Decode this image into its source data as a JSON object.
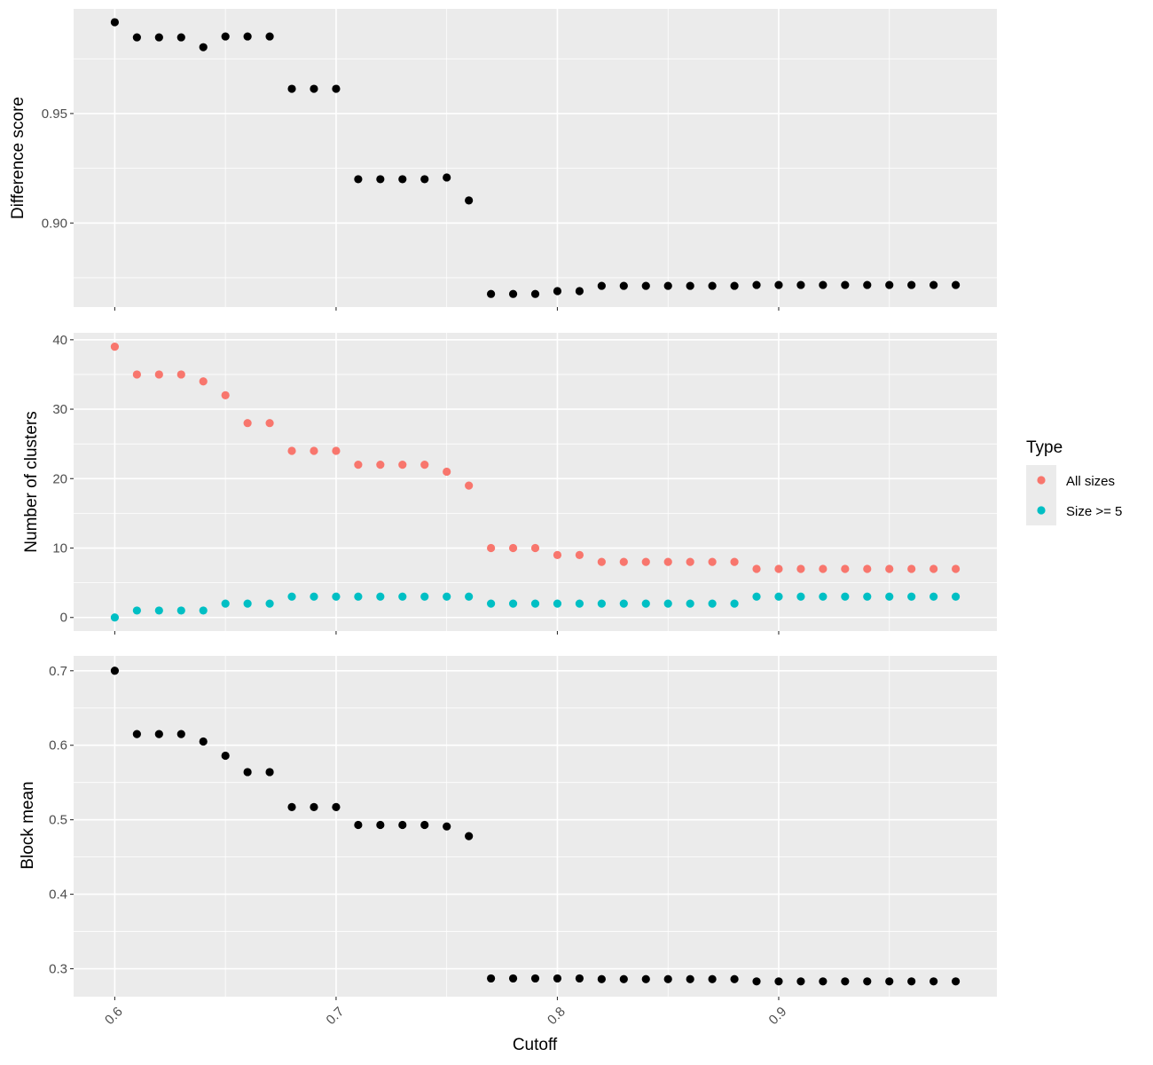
{
  "chart_data": [
    {
      "type": "scatter",
      "ylabel": "Difference score",
      "xlabel": "",
      "xlim": [
        0.5814,
        0.9986
      ],
      "ylim": [
        0.8616,
        0.9978
      ],
      "xticks": [
        0.6,
        0.7,
        0.8,
        0.9
      ],
      "yticks": [
        0.9,
        0.95
      ],
      "ytick_labels": [
        "0.90",
        "0.95"
      ],
      "grid": true,
      "series": [
        {
          "color": "#000000",
          "x": [
            0.6,
            0.61,
            0.62,
            0.63,
            0.64,
            0.65,
            0.66,
            0.67,
            0.68,
            0.69,
            0.7,
            0.71,
            0.72,
            0.73,
            0.74,
            0.75,
            0.76,
            0.77,
            0.78,
            0.79,
            0.8,
            0.81,
            0.82,
            0.83,
            0.84,
            0.85,
            0.86,
            0.87,
            0.88,
            0.89,
            0.9,
            0.91,
            0.92,
            0.93,
            0.94,
            0.95,
            0.96,
            0.97,
            0.98
          ],
          "y": [
            0.9917,
            0.9848,
            0.9848,
            0.9848,
            0.9803,
            0.9852,
            0.9852,
            0.9852,
            0.9613,
            0.9613,
            0.9613,
            0.92,
            0.92,
            0.92,
            0.92,
            0.9208,
            0.9103,
            0.8676,
            0.8676,
            0.8676,
            0.8689,
            0.8689,
            0.8713,
            0.8713,
            0.8713,
            0.8713,
            0.8713,
            0.8713,
            0.8713,
            0.8717,
            0.8717,
            0.8717,
            0.8717,
            0.8717,
            0.8717,
            0.8717,
            0.8717,
            0.8717,
            0.8717
          ]
        }
      ]
    },
    {
      "type": "scatter",
      "ylabel": "Number of clusters",
      "xlabel": "",
      "xlim": [
        0.5814,
        0.9986
      ],
      "ylim": [
        -1.95,
        41.0
      ],
      "xticks": [
        0.6,
        0.7,
        0.8,
        0.9
      ],
      "yticks": [
        0,
        10,
        20,
        30,
        40
      ],
      "ytick_labels": [
        "0",
        "10",
        "20",
        "30",
        "40"
      ],
      "grid": true,
      "legend": {
        "title": "Type",
        "placement": "right",
        "entries": [
          {
            "label": "All sizes",
            "color": "#F8766D"
          },
          {
            "label": "Size >= 5",
            "color": "#00BFC4"
          }
        ]
      },
      "series": [
        {
          "name": "All sizes",
          "color": "#F8766D",
          "x": [
            0.6,
            0.61,
            0.62,
            0.63,
            0.64,
            0.65,
            0.66,
            0.67,
            0.68,
            0.69,
            0.7,
            0.71,
            0.72,
            0.73,
            0.74,
            0.75,
            0.76,
            0.77,
            0.78,
            0.79,
            0.8,
            0.81,
            0.82,
            0.83,
            0.84,
            0.85,
            0.86,
            0.87,
            0.88,
            0.89,
            0.9,
            0.91,
            0.92,
            0.93,
            0.94,
            0.95,
            0.96,
            0.97,
            0.98
          ],
          "y": [
            39,
            35,
            35,
            35,
            34,
            32,
            28,
            28,
            24,
            24,
            24,
            22,
            22,
            22,
            22,
            21,
            19,
            10,
            10,
            10,
            9,
            9,
            8,
            8,
            8,
            8,
            8,
            8,
            8,
            7,
            7,
            7,
            7,
            7,
            7,
            7,
            7,
            7,
            7
          ]
        },
        {
          "name": "Size >= 5",
          "color": "#00BFC4",
          "x": [
            0.6,
            0.61,
            0.62,
            0.63,
            0.64,
            0.65,
            0.66,
            0.67,
            0.68,
            0.69,
            0.7,
            0.71,
            0.72,
            0.73,
            0.74,
            0.75,
            0.76,
            0.77,
            0.78,
            0.79,
            0.8,
            0.81,
            0.82,
            0.83,
            0.84,
            0.85,
            0.86,
            0.87,
            0.88,
            0.89,
            0.9,
            0.91,
            0.92,
            0.93,
            0.94,
            0.95,
            0.96,
            0.97,
            0.98
          ],
          "y": [
            0,
            1,
            1,
            1,
            1,
            2,
            2,
            2,
            3,
            3,
            3,
            3,
            3,
            3,
            3,
            3,
            3,
            2,
            2,
            2,
            2,
            2,
            2,
            2,
            2,
            2,
            2,
            2,
            2,
            3,
            3,
            3,
            3,
            3,
            3,
            3,
            3,
            3,
            3
          ]
        }
      ]
    },
    {
      "type": "scatter",
      "ylabel": "Block mean",
      "xlabel": "Cutoff",
      "xlim": [
        0.5814,
        0.9986
      ],
      "ylim": [
        0.2625,
        0.72
      ],
      "xticks": [
        0.6,
        0.7,
        0.8,
        0.9
      ],
      "xtick_labels": [
        "0.6",
        "0.7",
        "0.8",
        "0.9"
      ],
      "yticks": [
        0.3,
        0.4,
        0.5,
        0.6,
        0.7
      ],
      "ytick_labels": [
        "0.3",
        "0.4",
        "0.5",
        "0.6",
        "0.7"
      ],
      "grid": true,
      "series": [
        {
          "color": "#000000",
          "x": [
            0.6,
            0.61,
            0.62,
            0.63,
            0.64,
            0.65,
            0.66,
            0.67,
            0.68,
            0.69,
            0.7,
            0.71,
            0.72,
            0.73,
            0.74,
            0.75,
            0.76,
            0.77,
            0.78,
            0.79,
            0.8,
            0.81,
            0.82,
            0.83,
            0.84,
            0.85,
            0.86,
            0.87,
            0.88,
            0.89,
            0.9,
            0.91,
            0.92,
            0.93,
            0.94,
            0.95,
            0.96,
            0.97,
            0.98
          ],
          "y": [
            0.7,
            0.615,
            0.615,
            0.615,
            0.605,
            0.586,
            0.564,
            0.564,
            0.517,
            0.517,
            0.517,
            0.493,
            0.493,
            0.493,
            0.493,
            0.491,
            0.478,
            0.287,
            0.287,
            0.287,
            0.287,
            0.287,
            0.286,
            0.286,
            0.286,
            0.286,
            0.286,
            0.286,
            0.286,
            0.283,
            0.283,
            0.283,
            0.283,
            0.283,
            0.283,
            0.283,
            0.283,
            0.283,
            0.283
          ]
        }
      ]
    }
  ]
}
